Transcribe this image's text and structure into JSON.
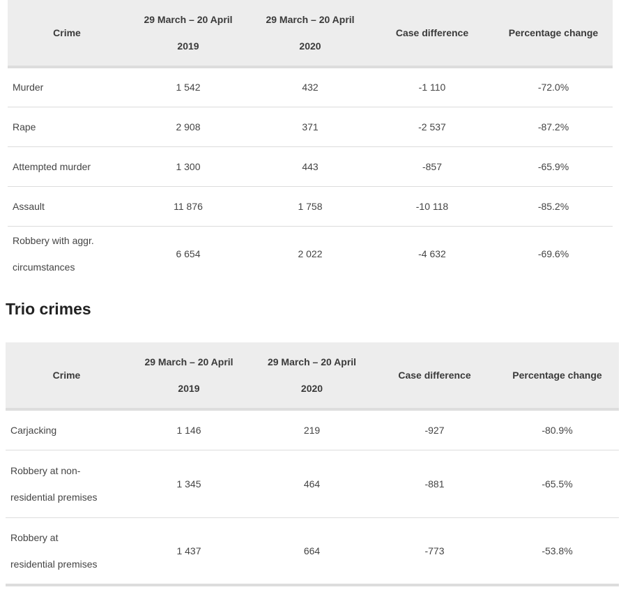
{
  "table1": {
    "headers": {
      "crime": "Crime",
      "col2019_line1": "29 March – 20 April",
      "col2019_line2": "2019",
      "col2020_line1": "29 March – 20 April",
      "col2020_line2": "2020",
      "difference": "Case difference",
      "percentage": "Percentage change"
    },
    "rows": [
      {
        "crime": "Murder",
        "crime_line2": "",
        "y2019": "1 542",
        "y2020": "432",
        "diff": "-1 110",
        "pct": "-72.0%"
      },
      {
        "crime": "Rape",
        "crime_line2": "",
        "y2019": "2 908",
        "y2020": "371",
        "diff": "-2 537",
        "pct": "-87.2%"
      },
      {
        "crime": "Attempted murder",
        "crime_line2": "",
        "y2019": "1 300",
        "y2020": "443",
        "diff": "-857",
        "pct": "-65.9%"
      },
      {
        "crime": "Assault",
        "crime_line2": "",
        "y2019": "11 876",
        "y2020": "1 758",
        "diff": "-10 118",
        "pct": "-85.2%"
      },
      {
        "crime": "Robbery with aggr.",
        "crime_line2": "circumstances",
        "y2019": "6 654",
        "y2020": "2 022",
        "diff": "-4 632",
        "pct": "-69.6%"
      }
    ]
  },
  "section2": {
    "title": "Trio crimes"
  },
  "table2": {
    "headers": {
      "crime": "Crime",
      "col2019_line1": "29 March – 20 April",
      "col2019_line2": "2019",
      "col2020_line1": "29 March – 20 April",
      "col2020_line2": "2020",
      "difference": "Case difference",
      "percentage": "Percentage change"
    },
    "rows": [
      {
        "crime": "Carjacking",
        "crime_line2": "",
        "y2019": "1 146",
        "y2020": "219",
        "diff": "-927",
        "pct": "-80.9%"
      },
      {
        "crime": "Robbery at non-",
        "crime_line2": "residential premises",
        "y2019": "1 345",
        "y2020": "464",
        "diff": "-881",
        "pct": "-65.5%"
      },
      {
        "crime": "Robbery at",
        "crime_line2": "residential premises",
        "y2019": "1 437",
        "y2020": "664",
        "diff": "-773",
        "pct": "-53.8%"
      }
    ]
  }
}
